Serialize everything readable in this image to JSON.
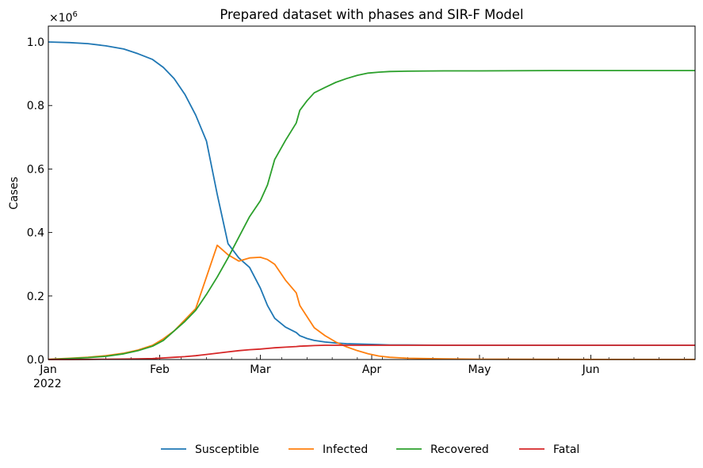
{
  "chart_data": {
    "type": "line",
    "title": "Prepared dataset with phases and SIR-F Model",
    "xlabel": "",
    "ylabel": "Cases",
    "y_multiplier": "×10",
    "y_multiplier_exp": "6",
    "ylim": [
      0,
      1.05
    ],
    "xlim": [
      0,
      180
    ],
    "yticks": [
      {
        "value": 0.0,
        "label": "0.0"
      },
      {
        "value": 0.2,
        "label": "0.2"
      },
      {
        "value": 0.4,
        "label": "0.4"
      },
      {
        "value": 0.6,
        "label": "0.6"
      },
      {
        "value": 0.8,
        "label": "0.8"
      },
      {
        "value": 1.0,
        "label": "1.0"
      }
    ],
    "xticks": [
      {
        "value": 0,
        "label": "Jan",
        "sublabel": "2022"
      },
      {
        "value": 31,
        "label": "Feb",
        "sublabel": ""
      },
      {
        "value": 59,
        "label": "Mar",
        "sublabel": ""
      },
      {
        "value": 90,
        "label": "Apr",
        "sublabel": ""
      },
      {
        "value": 120,
        "label": "May",
        "sublabel": ""
      },
      {
        "value": 151,
        "label": "Jun",
        "sublabel": ""
      }
    ],
    "x_days": [
      0,
      6,
      11,
      16,
      21,
      25,
      29,
      32,
      35,
      38,
      41,
      44,
      47,
      50,
      53,
      56,
      59,
      61,
      63,
      66,
      69,
      70,
      72,
      74,
      77,
      80,
      83,
      86,
      89,
      92,
      95,
      100,
      110,
      120,
      140,
      160,
      180
    ],
    "series": [
      {
        "name": "Susceptible",
        "color": "#1f77b4",
        "values": [
          1.0,
          0.998,
          0.995,
          0.988,
          0.978,
          0.963,
          0.945,
          0.92,
          0.885,
          0.835,
          0.77,
          0.688,
          0.52,
          0.365,
          0.32,
          0.29,
          0.225,
          0.17,
          0.13,
          0.102,
          0.085,
          0.075,
          0.066,
          0.06,
          0.055,
          0.052,
          0.05,
          0.049,
          0.048,
          0.047,
          0.046,
          0.046,
          0.045,
          0.045,
          0.045,
          0.045,
          0.045
        ]
      },
      {
        "name": "Infected",
        "color": "#ff7f0e",
        "values": [
          0.001,
          0.004,
          0.007,
          0.012,
          0.02,
          0.03,
          0.045,
          0.065,
          0.09,
          0.125,
          0.16,
          0.26,
          0.36,
          0.33,
          0.31,
          0.32,
          0.322,
          0.315,
          0.3,
          0.25,
          0.21,
          0.17,
          0.135,
          0.1,
          0.075,
          0.055,
          0.04,
          0.028,
          0.018,
          0.011,
          0.007,
          0.004,
          0.002,
          0.001,
          0.0005,
          0.0003,
          0.0002
        ]
      },
      {
        "name": "Recovered",
        "color": "#2ca02c",
        "values": [
          0.0,
          0.003,
          0.006,
          0.01,
          0.018,
          0.028,
          0.042,
          0.06,
          0.09,
          0.12,
          0.155,
          0.205,
          0.26,
          0.32,
          0.385,
          0.45,
          0.5,
          0.55,
          0.63,
          0.69,
          0.745,
          0.785,
          0.815,
          0.84,
          0.857,
          0.873,
          0.885,
          0.895,
          0.902,
          0.905,
          0.907,
          0.908,
          0.909,
          0.909,
          0.91,
          0.91,
          0.91
        ]
      },
      {
        "name": "Fatal",
        "color": "#d62728",
        "values": [
          0.0,
          0.0,
          0.0005,
          0.001,
          0.0015,
          0.002,
          0.003,
          0.005,
          0.007,
          0.009,
          0.012,
          0.016,
          0.02,
          0.024,
          0.028,
          0.031,
          0.033,
          0.035,
          0.037,
          0.039,
          0.041,
          0.042,
          0.043,
          0.044,
          0.045,
          0.045,
          0.045,
          0.045,
          0.045,
          0.045,
          0.045,
          0.045,
          0.045,
          0.045,
          0.045,
          0.045,
          0.045
        ]
      }
    ],
    "legend": {
      "placement": "bottom-center"
    }
  }
}
